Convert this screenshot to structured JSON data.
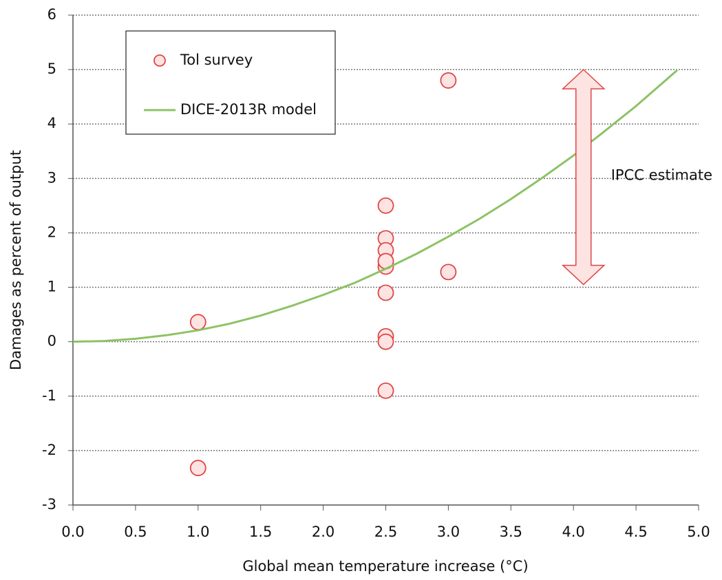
{
  "chart_data": {
    "type": "scatter",
    "xlabel": "Global mean temperature increase (°C)",
    "ylabel": "Damages as percent of output",
    "xlim": [
      0,
      5
    ],
    "xticks": [
      {
        "value": 0,
        "label": "0.0"
      },
      {
        "value": 0.5,
        "label": "0.5"
      },
      {
        "value": 1,
        "label": "1.0"
      },
      {
        "value": 1.5,
        "label": "1.5"
      },
      {
        "value": 2,
        "label": "2.0"
      },
      {
        "value": 2.5,
        "label": "2.5"
      },
      {
        "value": 3,
        "label": "3.0"
      },
      {
        "value": 3.5,
        "label": "3.5"
      },
      {
        "value": 4,
        "label": "4.0"
      },
      {
        "value": 4.5,
        "label": "4.5"
      },
      {
        "value": 5,
        "label": "5.0"
      }
    ],
    "ylim": [
      -3,
      6
    ],
    "yticks": [
      -3,
      -2,
      -1,
      0,
      1,
      2,
      3,
      4,
      5,
      6
    ],
    "grid": true,
    "legend": "upper left",
    "series": [
      {
        "name": "Tol survey",
        "type": "scatter",
        "color": "#e04545",
        "fill": "#fde4e2",
        "x": [
          1,
          1,
          2.5,
          2.5,
          2.5,
          2.5,
          2.5,
          2.5,
          2.5,
          2.5,
          2.5,
          3,
          3
        ],
        "values": [
          0.36,
          -2.32,
          2.5,
          1.9,
          1.68,
          1.38,
          1.48,
          0.9,
          0.1,
          0,
          -0.9,
          4.8,
          1.28
        ]
      },
      {
        "name": "DICE-2013R model",
        "type": "line",
        "color": "#8cc265",
        "x": [
          0,
          0.25,
          0.5,
          0.75,
          1,
          1.25,
          1.5,
          1.75,
          2,
          2.25,
          2.5,
          2.75,
          3,
          3.25,
          3.5,
          3.75,
          4,
          4.25,
          4.5,
          4.75,
          4.83
        ],
        "values": [
          0,
          0.013,
          0.054,
          0.12,
          0.21,
          0.33,
          0.48,
          0.66,
          0.86,
          1.08,
          1.34,
          1.62,
          1.93,
          2.26,
          2.62,
          3.01,
          3.42,
          3.87,
          4.33,
          4.83,
          4.99
        ]
      }
    ],
    "annotations": [
      {
        "text": "IPCC estimate",
        "x": 4.08,
        "range": [
          1.05,
          5
        ],
        "color": "#e04545",
        "fill": "#fde4e2"
      }
    ]
  }
}
